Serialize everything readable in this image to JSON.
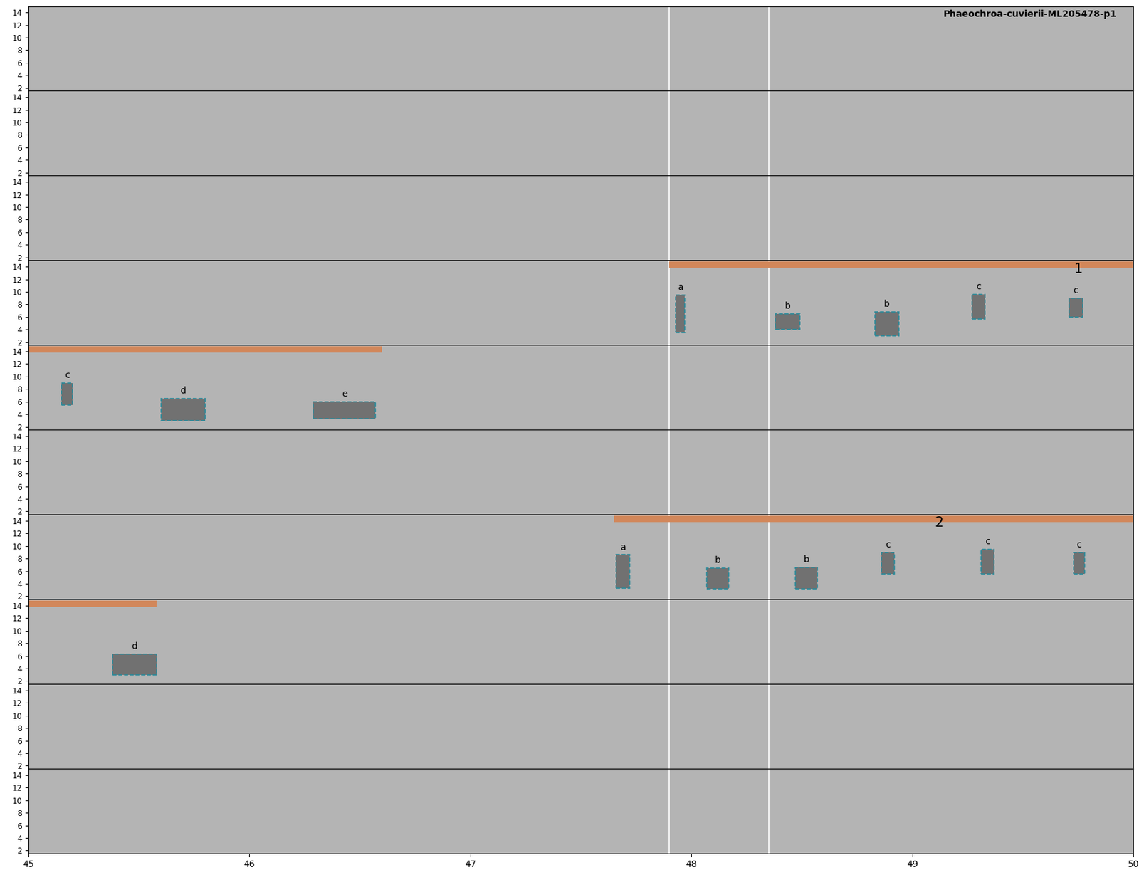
{
  "chart_data": {
    "type": "spectrogram",
    "title": "Phaeochroa-cuvierii-ML205478-p1",
    "panels": 10,
    "xlim": [
      45,
      50
    ],
    "xticks": [
      45,
      46,
      47,
      48,
      49,
      50
    ],
    "ylim": [
      1.5,
      15
    ],
    "yticks": [
      2,
      4,
      6,
      8,
      10,
      12,
      14
    ],
    "tick_labels": true,
    "color": "#b4b4b4",
    "cursor_lines": [
      47.9,
      48.35
    ],
    "selections": [
      {
        "label": "1",
        "color": "#d2875a",
        "label_x": 49.75,
        "spans": [
          {
            "panel": 4,
            "start": 47.9,
            "end": 50
          },
          {
            "panel": 5,
            "start": 45,
            "end": 46.6
          }
        ]
      },
      {
        "label": "2",
        "color": "#d2875a",
        "label_x": 49.12,
        "spans": [
          {
            "panel": 7,
            "start": 47.65,
            "end": 50
          },
          {
            "panel": 8,
            "start": 45,
            "end": 45.58
          }
        ]
      }
    ],
    "boxes": [
      {
        "panel": 4,
        "label": "a",
        "x": [
          47.93,
          47.97
        ],
        "y": [
          3.5,
          9.5
        ]
      },
      {
        "panel": 4,
        "label": "b",
        "x": [
          48.38,
          48.49
        ],
        "y": [
          4,
          6.5
        ]
      },
      {
        "panel": 4,
        "label": "b",
        "x": [
          48.83,
          48.94
        ],
        "y": [
          3,
          6.8
        ]
      },
      {
        "panel": 4,
        "label": "c",
        "x": [
          49.27,
          49.33
        ],
        "y": [
          5.7,
          9.6
        ]
      },
      {
        "panel": 4,
        "label": "c",
        "x": [
          49.71,
          49.77
        ],
        "y": [
          6,
          9
        ]
      },
      {
        "panel": 5,
        "label": "c",
        "x": [
          45.15,
          45.2
        ],
        "y": [
          5.5,
          9
        ]
      },
      {
        "panel": 5,
        "label": "d",
        "x": [
          45.6,
          45.8
        ],
        "y": [
          3,
          6.5
        ]
      },
      {
        "panel": 5,
        "label": "e",
        "x": [
          46.29,
          46.57
        ],
        "y": [
          3.3,
          6
        ]
      },
      {
        "panel": 7,
        "label": "a",
        "x": [
          47.66,
          47.72
        ],
        "y": [
          3.3,
          8.6
        ]
      },
      {
        "panel": 7,
        "label": "b",
        "x": [
          48.07,
          48.17
        ],
        "y": [
          3.2,
          6.5
        ]
      },
      {
        "panel": 7,
        "label": "b",
        "x": [
          48.47,
          48.57
        ],
        "y": [
          3.2,
          6.6
        ]
      },
      {
        "panel": 7,
        "label": "c",
        "x": [
          48.86,
          48.92
        ],
        "y": [
          5.5,
          9
        ]
      },
      {
        "panel": 7,
        "label": "c",
        "x": [
          49.31,
          49.37
        ],
        "y": [
          5.5,
          9.5
        ]
      },
      {
        "panel": 7,
        "label": "c",
        "x": [
          49.73,
          49.78
        ],
        "y": [
          5.5,
          9
        ]
      },
      {
        "panel": 8,
        "label": "d",
        "x": [
          45.38,
          45.58
        ],
        "y": [
          3,
          6.3
        ]
      }
    ]
  }
}
